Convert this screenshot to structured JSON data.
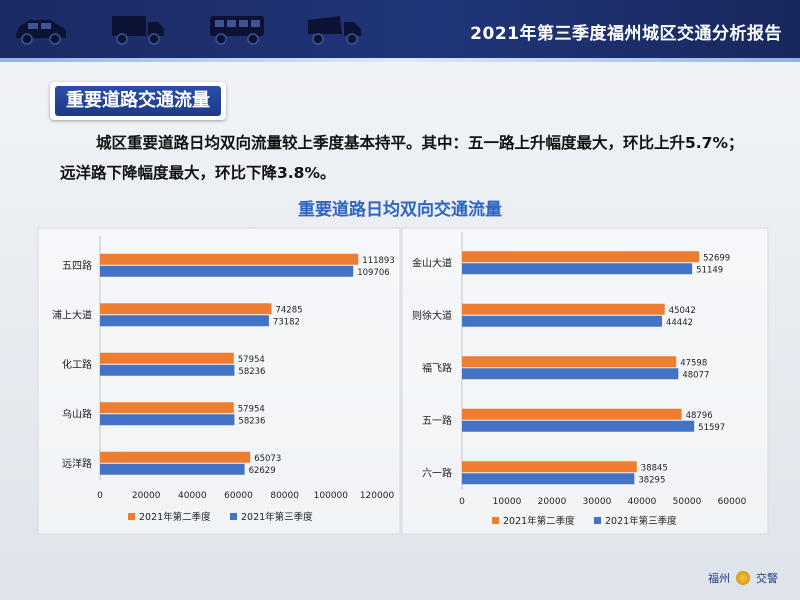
{
  "header": {
    "title": "2021年第三季度福州城区交通分析报告",
    "icons": [
      "car-icon",
      "truck-icon",
      "bus-icon",
      "dump-truck-icon"
    ]
  },
  "section": {
    "tag": "重要道路交通流量"
  },
  "intro": "城区重要道路日均双向流量较上季度基本持平。其中：五一路上升幅度最大，环比上升5.7%；远洋路下降幅度最大，环比下降3.8%。",
  "footer": {
    "left": "福州",
    "right": "交警"
  },
  "colors": {
    "q2": "#ed7d31",
    "q3": "#4472c4",
    "header_bg": "#1b2a63",
    "title_blue": "#2f64c4"
  },
  "chart_data": [
    {
      "type": "bar",
      "orientation": "horizontal",
      "title": "重要道路日均双向交通流量",
      "categories": [
        "五四路",
        "浦上大道",
        "化工路",
        "乌山路",
        "远洋路"
      ],
      "series": [
        {
          "name": "2021年第二季度",
          "values": [
            111893,
            74285,
            57954,
            57954,
            65073
          ]
        },
        {
          "name": "2021年第三季度",
          "values": [
            109706,
            73182,
            58236,
            58236,
            62629
          ]
        }
      ],
      "xlim": [
        0,
        120000
      ],
      "ticks": [
        "0",
        "20000",
        "40000",
        "60000",
        "80000",
        "100000",
        "120000"
      ],
      "legend": "bottom",
      "grid": false
    },
    {
      "type": "bar",
      "orientation": "horizontal",
      "title": "",
      "categories": [
        "金山大道",
        "则徐大道",
        "福飞路",
        "五一路",
        "六一路"
      ],
      "series": [
        {
          "name": "2021年第二季度",
          "values": [
            52699,
            45042,
            47598,
            48796,
            38845
          ]
        },
        {
          "name": "2021年第三季度",
          "values": [
            51149,
            44442,
            48077,
            51597,
            38295
          ]
        }
      ],
      "xlim": [
        0,
        60000
      ],
      "ticks": [
        "0",
        "10000",
        "20000",
        "30000",
        "40000",
        "50000",
        "60000"
      ],
      "legend": "bottom",
      "grid": false
    }
  ]
}
